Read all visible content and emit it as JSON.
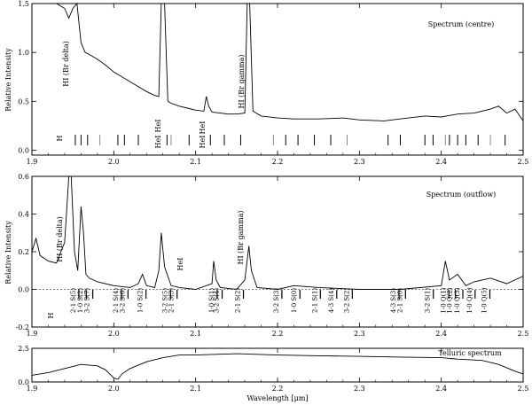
{
  "chart_data": [
    {
      "type": "line",
      "title": "",
      "panel_label": "Spectrum (centre)",
      "xlabel": "",
      "ylabel": "Relative Intensity",
      "xlim": [
        1.9,
        2.5
      ],
      "ylim": [
        -0.05,
        1.5
      ],
      "xticks": [
        "1.9",
        "2.0",
        "2.1",
        "2.2",
        "2.3",
        "2.4",
        "2.5"
      ],
      "yticks": [
        "0.0",
        "0.5",
        "1.0",
        "1.5"
      ],
      "series": [
        {
          "x": [
            1.9,
            1.915,
            1.93,
            1.94,
            1.945,
            1.95,
            1.955,
            1.96,
            1.965,
            1.97,
            1.98,
            1.99,
            2.0,
            2.01,
            2.02,
            2.03,
            2.04,
            2.05,
            2.055,
            2.058,
            2.062,
            2.066,
            2.07,
            2.08,
            2.09,
            2.1,
            2.11,
            2.113,
            2.116,
            2.12,
            2.13,
            2.14,
            2.15,
            2.16,
            2.163,
            2.166,
            2.17,
            2.18,
            2.2,
            2.22,
            2.25,
            2.28,
            2.3,
            2.33,
            2.36,
            2.38,
            2.4,
            2.42,
            2.44,
            2.46,
            2.47,
            2.48,
            2.49,
            2.5
          ],
          "y": [
            1.5,
            1.5,
            1.5,
            1.45,
            1.35,
            1.45,
            1.5,
            1.1,
            1.0,
            0.98,
            0.93,
            0.87,
            0.8,
            0.75,
            0.7,
            0.65,
            0.6,
            0.56,
            0.55,
            1.5,
            1.5,
            0.5,
            0.48,
            0.45,
            0.43,
            0.41,
            0.4,
            0.55,
            0.45,
            0.39,
            0.38,
            0.37,
            0.37,
            0.38,
            1.5,
            1.5,
            0.4,
            0.35,
            0.33,
            0.32,
            0.32,
            0.33,
            0.31,
            0.3,
            0.33,
            0.35,
            0.34,
            0.37,
            0.38,
            0.42,
            0.45,
            0.38,
            0.42,
            0.3
          ]
        }
      ],
      "annotations": [
        "HI (Br delta)",
        "HeI",
        "HeI",
        "HI (Br gamma)",
        "H",
        "HeI",
        "HeI"
      ],
      "line_markers": [
        1.953,
        1.96,
        1.968,
        1.983,
        2.005,
        2.013,
        2.03,
        2.065,
        2.07,
        2.092,
        2.118,
        2.135,
        2.155,
        2.195,
        2.21,
        2.225,
        2.245,
        2.265,
        2.285,
        2.335,
        2.35,
        2.38,
        2.39,
        2.405,
        2.41,
        2.42,
        2.43,
        2.445,
        2.46,
        2.478
      ]
    },
    {
      "type": "line",
      "title": "",
      "panel_label": "Spectrum (outflow)",
      "xlabel": "",
      "ylabel": "Relative Intensity",
      "xlim": [
        1.9,
        2.5
      ],
      "ylim": [
        -0.2,
        0.6
      ],
      "xticks": [
        "1.9",
        "2.0",
        "2.1",
        "2.2",
        "2.3",
        "2.4",
        "2.5"
      ],
      "yticks": [
        "-0.2",
        "0.0",
        "0.2",
        "0.4",
        "0.6"
      ],
      "series": [
        {
          "x": [
            1.9,
            1.905,
            1.91,
            1.92,
            1.93,
            1.94,
            1.945,
            1.948,
            1.952,
            1.956,
            1.96,
            1.963,
            1.966,
            1.97,
            1.98,
            2.0,
            2.02,
            2.03,
            2.035,
            2.04,
            2.05,
            2.055,
            2.058,
            2.062,
            2.07,
            2.08,
            2.1,
            2.12,
            2.122,
            2.125,
            2.13,
            2.15,
            2.16,
            2.165,
            2.168,
            2.175,
            2.2,
            2.22,
            2.25,
            2.3,
            2.35,
            2.4,
            2.405,
            2.41,
            2.42,
            2.43,
            2.44,
            2.46,
            2.48,
            2.5
          ],
          "y": [
            0.2,
            0.27,
            0.18,
            0.15,
            0.14,
            0.25,
            0.6,
            0.6,
            0.2,
            0.1,
            0.44,
            0.3,
            0.08,
            0.06,
            0.04,
            0.02,
            0.01,
            0.03,
            0.08,
            0.02,
            0.01,
            0.1,
            0.3,
            0.12,
            0.02,
            0.01,
            0.0,
            0.03,
            0.15,
            0.05,
            0.01,
            0.0,
            0.05,
            0.23,
            0.1,
            0.01,
            0.0,
            0.02,
            0.01,
            0.0,
            0.0,
            0.02,
            0.15,
            0.05,
            0.08,
            0.02,
            0.04,
            0.06,
            0.03,
            0.07
          ]
        }
      ],
      "annotations": [
        "HI (Br delta)",
        "HeI",
        "HI (Br gamma)",
        "H"
      ],
      "line_labels": [
        "2-1 S(5)",
        "1-0 S(2)",
        "3-2 S(7)",
        "2-1 S(4)",
        "3-2 S(6)",
        "1-0 S(2)",
        "3-2 S(5)",
        "2-1 S(3)",
        "1-0 S(1)",
        "3-2 S(4)",
        "2-1 S(2)",
        "3-2 S(3)",
        "1-0 S(0)",
        "2-1 S(1)",
        "4-3 S(4)",
        "3-2 S(2)",
        "4-3 S(3)",
        "2-1 S(0)",
        "3-2 S(1)",
        "1-0 Q(1)",
        "1-0 Q(2)",
        "1-0 Q(3)",
        "1-0 Q(4)",
        "1-0 Q(5)"
      ]
    },
    {
      "type": "line",
      "title": "",
      "panel_label": "Telluric spectrum",
      "xlabel": "Wavelength [μm]",
      "ylabel": "",
      "xlim": [
        1.9,
        2.5
      ],
      "ylim": [
        0.0,
        2.5
      ],
      "xticks": [
        "1.9",
        "2.0",
        "2.1",
        "2.2",
        "2.3",
        "2.4",
        "2.5"
      ],
      "yticks": [
        "0.0",
        "2.5"
      ],
      "series": [
        {
          "x": [
            1.9,
            1.92,
            1.94,
            1.96,
            1.98,
            1.99,
            2.0,
            2.005,
            2.01,
            2.02,
            2.04,
            2.06,
            2.08,
            2.1,
            2.15,
            2.2,
            2.25,
            2.3,
            2.35,
            2.4,
            2.42,
            2.45,
            2.47,
            2.49,
            2.5
          ],
          "y": [
            0.5,
            0.7,
            1.0,
            1.3,
            1.2,
            0.9,
            0.3,
            0.2,
            0.6,
            1.0,
            1.5,
            1.8,
            2.0,
            2.0,
            2.1,
            2.0,
            1.95,
            1.9,
            1.85,
            1.8,
            1.7,
            1.6,
            1.3,
            0.8,
            0.6
          ]
        }
      ]
    }
  ],
  "labels": {
    "panel1_title": "Spectrum (centre)",
    "panel2_title": "Spectrum (outflow)",
    "panel3_title": "Telluric spectrum",
    "ylabel1": "Relative Intensity",
    "ylabel2": "Relative Intensity",
    "xlabel3": "Wavelength [μm]",
    "p1_brdelta": "HI (Br delta)",
    "p1_hei_a": "HeI",
    "p1_hei_b": "HeI",
    "p1_brgamma": "HI (Br gamma)",
    "p1_h": "H",
    "p1_hei_c": "HeI",
    "p1_hei_d": "HeI",
    "p2_brdelta": "HI (Br delta)",
    "p2_hei": "HeI",
    "p2_brgamma": "HI (Br gamma)",
    "p2_h": "H"
  },
  "colors": {
    "line": "#000000",
    "axis": "#000000",
    "marker_gray": "#888888"
  }
}
